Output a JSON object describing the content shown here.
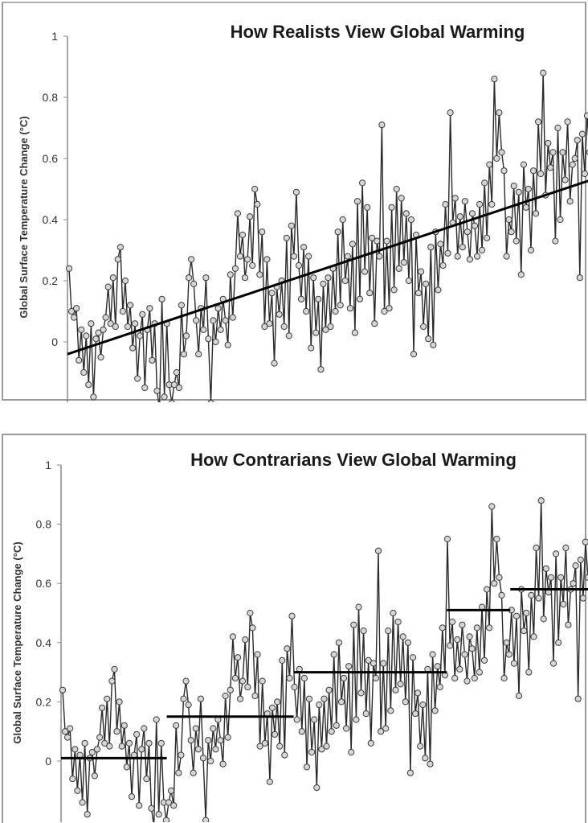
{
  "chart_data": [
    {
      "type": "line",
      "title": "How Realists View Global Warming",
      "xlabel": "",
      "ylabel": "Global Surface Temperature Change (°C)",
      "ytick_labels": [
        "0",
        "0.2",
        "0.4",
        "0.6",
        "0.8",
        "1"
      ],
      "ylim": [
        -0.2,
        1.0
      ],
      "grid": false,
      "series": [
        {
          "values": [
            0.24,
            0.1,
            0.08,
            0.11,
            -0.06,
            0.04,
            -0.1,
            0.02,
            -0.14,
            0.06,
            -0.18,
            0.01,
            0.03,
            -0.05,
            0.04,
            0.08,
            0.18,
            0.06,
            0.21,
            0.05,
            0.27,
            0.31,
            0.1,
            0.2,
            0.05,
            0.12,
            -0.02,
            0.06,
            -0.12,
            0.02,
            0.09,
            -0.15,
            0.04,
            0.11,
            -0.06,
            0.06,
            -0.16,
            -0.22,
            0.14,
            -0.18,
            0.06,
            -0.14,
            -0.2,
            -0.14,
            -0.1,
            -0.15,
            0.12,
            -0.04,
            0.02,
            0.21,
            0.27,
            0.19,
            0.07,
            -0.04,
            0.11,
            0.04,
            0.21,
            0.01,
            -0.2,
            0.07,
            0.0,
            0.11,
            0.04,
            0.14,
            0.07,
            -0.01,
            0.22,
            0.08,
            0.24,
            0.42,
            0.28,
            0.35,
            0.21,
            0.27,
            0.41,
            0.25,
            0.5,
            0.45,
            0.22,
            0.36,
            0.05,
            0.27,
            0.06,
            0.16,
            -0.07,
            0.18,
            0.09,
            0.2,
            0.05,
            0.34,
            0.02,
            0.38,
            0.28,
            0.49,
            0.25,
            0.14,
            0.31,
            0.1,
            0.28,
            -0.02,
            0.21,
            0.03,
            0.14,
            -0.09,
            0.19,
            0.04,
            0.21,
            0.05,
            0.24,
            0.1,
            0.36,
            0.12,
            0.4,
            0.2,
            0.28,
            0.11,
            0.32,
            0.03,
            0.46,
            0.14,
            0.52,
            0.23,
            0.44,
            0.16,
            0.34,
            0.06,
            0.33,
            0.28,
            0.71,
            0.1,
            0.33,
            0.11,
            0.44,
            0.17,
            0.5,
            0.24,
            0.47,
            0.26,
            0.42,
            0.2,
            0.4,
            -0.04,
            0.35,
            0.16,
            0.23,
            0.05,
            0.19,
            0.01,
            0.31,
            -0.01,
            0.36,
            0.17,
            0.32,
            0.25,
            0.45,
            0.29,
            0.75,
            0.39,
            0.47,
            0.28,
            0.41,
            0.31,
            0.46,
            0.36,
            0.27,
            0.42,
            0.38,
            0.28,
            0.45,
            0.3,
            0.52,
            0.34,
            0.58,
            0.45,
            0.86,
            0.6,
            0.75,
            0.62,
            0.56,
            0.28,
            0.4,
            0.36,
            0.51,
            0.33,
            0.49,
            0.22,
            0.58,
            0.44,
            0.5,
            0.3,
            0.56,
            0.42,
            0.72,
            0.55,
            0.88,
            0.48,
            0.65,
            0.57,
            0.62,
            0.33,
            0.7,
            0.4,
            0.62,
            0.53,
            0.72,
            0.46,
            0.58,
            0.6,
            0.66,
            0.21,
            0.68,
            0.55,
            0.74,
            0.62
          ]
        }
      ],
      "trend_lines": [
        {
          "x_start": 0.0,
          "x_end": 1.0,
          "y_start": -0.04,
          "y_end": 0.53
        }
      ]
    },
    {
      "type": "line",
      "title": "How Contrarians View Global Warming",
      "xlabel": "",
      "ylabel": "Global Surface Temperature Change (°C)",
      "ytick_labels": [
        "0",
        "0.2",
        "0.4",
        "0.6",
        "0.8",
        "1"
      ],
      "ylim": [
        -0.2,
        1.0
      ],
      "grid": false,
      "series": [
        {
          "values": [
            0.24,
            0.1,
            0.08,
            0.11,
            -0.06,
            0.04,
            -0.1,
            0.02,
            -0.14,
            0.06,
            -0.18,
            0.01,
            0.03,
            -0.05,
            0.04,
            0.08,
            0.18,
            0.06,
            0.21,
            0.05,
            0.27,
            0.31,
            0.1,
            0.2,
            0.05,
            0.12,
            -0.02,
            0.06,
            -0.12,
            0.02,
            0.09,
            -0.15,
            0.04,
            0.11,
            -0.06,
            0.06,
            -0.16,
            -0.22,
            0.14,
            -0.18,
            0.06,
            -0.14,
            -0.2,
            -0.14,
            -0.1,
            -0.15,
            0.12,
            -0.04,
            0.02,
            0.21,
            0.27,
            0.19,
            0.07,
            -0.04,
            0.11,
            0.04,
            0.21,
            0.01,
            -0.2,
            0.07,
            0.0,
            0.11,
            0.04,
            0.14,
            0.07,
            -0.01,
            0.22,
            0.08,
            0.24,
            0.42,
            0.28,
            0.35,
            0.21,
            0.27,
            0.41,
            0.25,
            0.5,
            0.45,
            0.22,
            0.36,
            0.05,
            0.27,
            0.06,
            0.16,
            -0.07,
            0.18,
            0.09,
            0.2,
            0.05,
            0.34,
            0.02,
            0.38,
            0.28,
            0.49,
            0.25,
            0.14,
            0.31,
            0.1,
            0.28,
            -0.02,
            0.21,
            0.03,
            0.14,
            -0.09,
            0.19,
            0.04,
            0.21,
            0.05,
            0.24,
            0.1,
            0.36,
            0.12,
            0.4,
            0.2,
            0.28,
            0.11,
            0.32,
            0.03,
            0.46,
            0.14,
            0.52,
            0.23,
            0.44,
            0.16,
            0.34,
            0.06,
            0.33,
            0.28,
            0.71,
            0.1,
            0.33,
            0.11,
            0.44,
            0.17,
            0.5,
            0.24,
            0.47,
            0.26,
            0.42,
            0.2,
            0.4,
            -0.04,
            0.35,
            0.16,
            0.23,
            0.05,
            0.19,
            0.01,
            0.31,
            -0.01,
            0.36,
            0.17,
            0.32,
            0.25,
            0.45,
            0.29,
            0.75,
            0.39,
            0.47,
            0.28,
            0.41,
            0.31,
            0.46,
            0.36,
            0.27,
            0.42,
            0.38,
            0.28,
            0.45,
            0.3,
            0.52,
            0.34,
            0.58,
            0.45,
            0.86,
            0.6,
            0.75,
            0.62,
            0.56,
            0.28,
            0.4,
            0.36,
            0.51,
            0.33,
            0.49,
            0.22,
            0.58,
            0.44,
            0.5,
            0.3,
            0.56,
            0.42,
            0.72,
            0.55,
            0.88,
            0.48,
            0.65,
            0.57,
            0.62,
            0.33,
            0.7,
            0.4,
            0.62,
            0.53,
            0.72,
            0.46,
            0.58,
            0.6,
            0.66,
            0.21,
            0.68,
            0.55,
            0.74,
            0.62
          ]
        }
      ],
      "trend_lines": [
        {
          "x_start": 0.0,
          "x_end": 0.2,
          "y_start": 0.01,
          "y_end": 0.01
        },
        {
          "x_start": 0.2,
          "x_end": 0.44,
          "y_start": 0.15,
          "y_end": 0.15
        },
        {
          "x_start": 0.44,
          "x_end": 0.73,
          "y_start": 0.3,
          "y_end": 0.3
        },
        {
          "x_start": 0.73,
          "x_end": 0.85,
          "y_start": 0.51,
          "y_end": 0.51
        },
        {
          "x_start": 0.85,
          "x_end": 1.0,
          "y_start": 0.58,
          "y_end": 0.58
        }
      ]
    }
  ]
}
